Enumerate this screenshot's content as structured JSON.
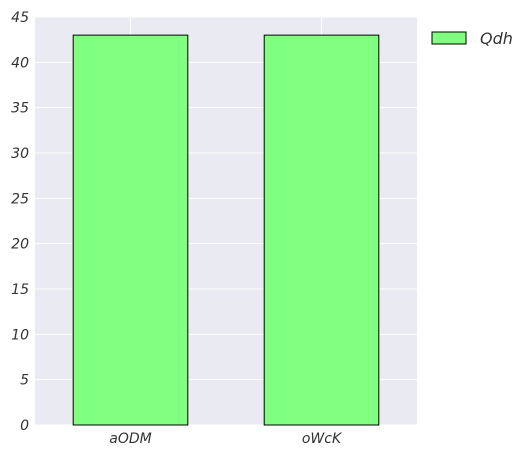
{
  "chart_data": {
    "type": "bar",
    "categories": [
      "aODM",
      "oWcK"
    ],
    "series": [
      {
        "name": "Qdh",
        "values": [
          43,
          43
        ],
        "color": "#80ff80"
      }
    ],
    "title": "",
    "xlabel": "",
    "ylabel": "",
    "ylim": [
      0,
      45
    ],
    "yticks": [
      "0",
      "5",
      "10",
      "15",
      "20",
      "25",
      "30",
      "35",
      "40",
      "45"
    ],
    "grid": true,
    "legend": "outside-top-right",
    "background": "#eaeaf2",
    "bar_edge_color": "#000000"
  }
}
